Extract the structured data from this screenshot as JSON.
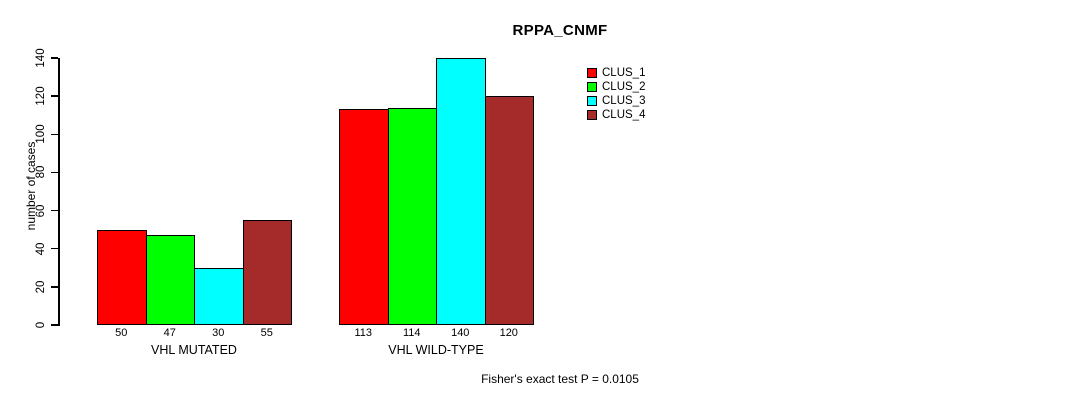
{
  "chart_data": {
    "type": "bar",
    "title": "RPPA_CNMF",
    "ylabel": "number of cases",
    "xlabel": "",
    "ylim": [
      0,
      140
    ],
    "yticks": [
      0,
      20,
      40,
      60,
      80,
      100,
      120,
      140
    ],
    "categories": [
      "VHL MUTATED",
      "VHL WILD-TYPE"
    ],
    "series": [
      {
        "name": "CLUS_1",
        "color": "#FF0000",
        "values": [
          50,
          113
        ]
      },
      {
        "name": "CLUS_2",
        "color": "#00FF00",
        "values": [
          47,
          114
        ]
      },
      {
        "name": "CLUS_3",
        "color": "#00FFFF",
        "values": [
          30,
          140
        ]
      },
      {
        "name": "CLUS_4",
        "color": "#A52A2A",
        "values": [
          55,
          120
        ]
      }
    ],
    "bar_labels": [
      [
        50,
        47,
        30,
        55
      ],
      [
        113,
        114,
        140,
        120
      ]
    ],
    "legend_position": "top-right",
    "grid": false,
    "background": "#ffffff",
    "annotation": "Fisher's exact test P = 0.0105"
  }
}
